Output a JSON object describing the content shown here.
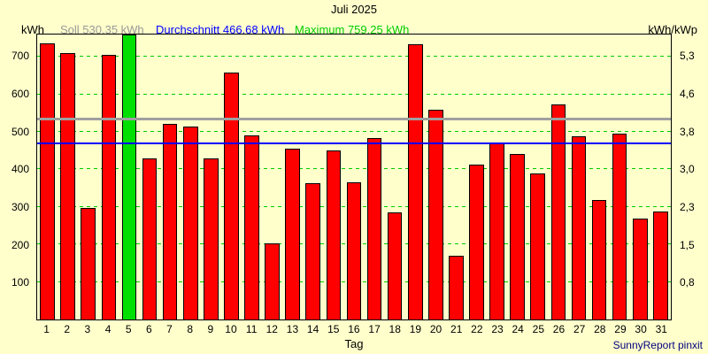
{
  "title": "Juli 2025",
  "legend": {
    "left_unit": "kWh",
    "soll": "Soll 530.35 kWh",
    "durchschnitt": "Durchschnitt 466.68 kWh",
    "maximum": "Maximum 759.25 kWh",
    "right_unit": "kWh/kWp"
  },
  "footer": {
    "xlabel": "Tag",
    "branding": "SunnyReport pinxit"
  },
  "colors": {
    "background": "#FFFFCC",
    "border": "#000000",
    "bar": "#FF0000",
    "bar_max": "#00E000",
    "grid": "#00CC00",
    "soll": "#A0A0A0",
    "durchschnitt": "#0000FF",
    "soll_text": "#999999",
    "durchschnitt_text": "#0000FF",
    "maximum_text": "#00CC00",
    "branding_text": "#000080"
  },
  "chart_data": {
    "type": "bar",
    "title": "Juli 2025",
    "xlabel": "Tag",
    "ylabel_left": "kWh",
    "ylabel_right": "kWh/kWp",
    "ylim": [
      0,
      759.25
    ],
    "grid": true,
    "categories": [
      1,
      2,
      3,
      4,
      5,
      6,
      7,
      8,
      9,
      10,
      11,
      12,
      13,
      14,
      15,
      16,
      17,
      18,
      19,
      20,
      21,
      22,
      23,
      24,
      25,
      26,
      27,
      28,
      29,
      30,
      31
    ],
    "values": [
      735,
      710,
      297,
      705,
      759.25,
      430,
      520,
      515,
      428,
      658,
      490,
      202,
      455,
      363,
      450,
      366,
      483,
      285,
      733,
      560,
      170,
      413,
      470,
      440,
      390,
      572,
      488,
      318,
      495,
      270,
      287
    ],
    "max_index": 4,
    "left_ticks": [
      100,
      200,
      300,
      400,
      500,
      600,
      700
    ],
    "right_tick_labels": [
      "0,8",
      "1,5",
      "2,3",
      "3,0",
      "3,8",
      "4,6",
      "5,3"
    ],
    "soll": 530.35,
    "durchschnitt": 466.68,
    "maximum": 759.25
  }
}
